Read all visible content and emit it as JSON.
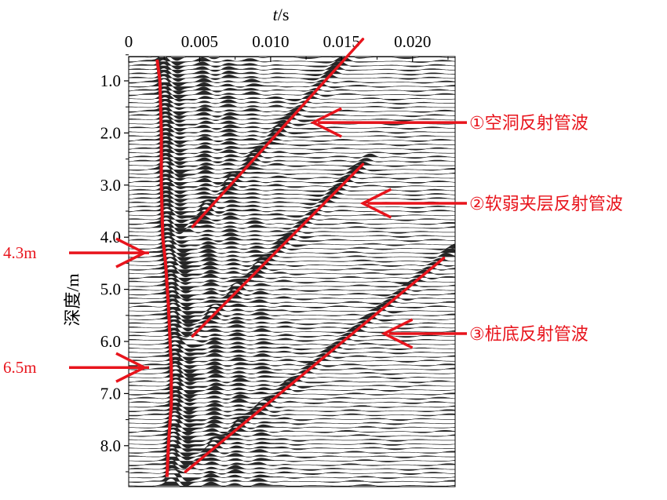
{
  "chart_data": {
    "type": "seismic-wiggle",
    "xlabel_var": "t",
    "xlabel_unit": "/s",
    "ylabel": "深度/m",
    "xlim": [
      0,
      0.023
    ],
    "ylim": [
      0.3,
      8.7
    ],
    "x_ticks": [
      {
        "value": 0,
        "label": "0"
      },
      {
        "value": 0.005,
        "label": "0.005"
      },
      {
        "value": 0.01,
        "label": "0.010"
      },
      {
        "value": 0.015,
        "label": "0.015"
      },
      {
        "value": 0.02,
        "label": "0.020"
      }
    ],
    "y_ticks": [
      {
        "value": 1,
        "label": "1.0"
      },
      {
        "value": 2,
        "label": "2.0"
      },
      {
        "value": 3,
        "label": "3.0"
      },
      {
        "value": 4,
        "label": "4.0"
      },
      {
        "value": 5,
        "label": "5.0"
      },
      {
        "value": 6,
        "label": "6.0"
      },
      {
        "value": 7,
        "label": "7.0"
      },
      {
        "value": 8,
        "label": "8.0"
      }
    ],
    "direct_wave": {
      "color": "#e8141c",
      "points": [
        [
          0.002,
          0.0
        ],
        [
          0.0022,
          1.0
        ],
        [
          0.0023,
          2.0
        ],
        [
          0.0023,
          3.0
        ],
        [
          0.0024,
          4.0
        ],
        [
          0.0026,
          4.5
        ],
        [
          0.0028,
          5.3
        ],
        [
          0.003,
          6.5
        ],
        [
          0.003,
          7.2
        ],
        [
          0.0028,
          8.0
        ],
        [
          0.0027,
          8.6
        ]
      ]
    },
    "reflection_lines": [
      {
        "name": "①空洞反射管波",
        "color": "#e8141c",
        "points": [
          [
            0.0045,
            3.8
          ],
          [
            0.0165,
            0.2
          ]
        ]
      },
      {
        "name": "②软弱夹层反射管波",
        "color": "#e8141c",
        "points": [
          [
            0.0045,
            5.9
          ],
          [
            0.0165,
            2.6
          ]
        ]
      },
      {
        "name": "③桩底反射管波",
        "color": "#e8141c",
        "points": [
          [
            0.004,
            8.5
          ],
          [
            0.0222,
            4.4
          ]
        ]
      }
    ],
    "annotations": [
      {
        "text": "①空洞反射管波",
        "arrow_target": [
          0.013,
          1.8
        ]
      },
      {
        "text": "②软弱夹层反射管波",
        "arrow_target": [
          0.0165,
          3.35
        ]
      },
      {
        "text": "③桩底反射管波",
        "arrow_target": [
          0.018,
          5.85
        ]
      }
    ],
    "depth_markers": [
      {
        "text": "4.3m",
        "depth": 4.3
      },
      {
        "text": "6.5m",
        "depth": 6.5
      }
    ],
    "accent_color": "#e8141c"
  }
}
